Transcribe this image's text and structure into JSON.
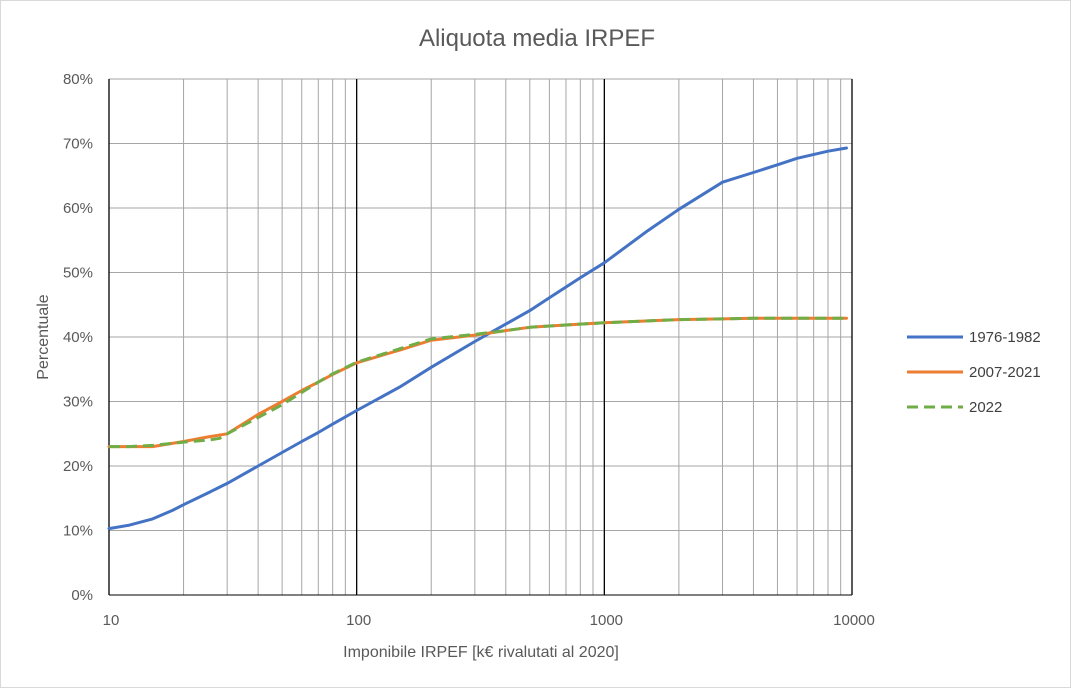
{
  "chart_data": {
    "type": "line",
    "title": "Aliquota media IRPEF",
    "xlabel": "Imponibile IRPEF [k€ rivalutati al 2020]",
    "ylabel": "Percentuale",
    "xscale": "log",
    "xlim": [
      10,
      10000
    ],
    "ylim": [
      0,
      0.8
    ],
    "x_ticks": [
      "10",
      "100",
      "1000",
      "10000"
    ],
    "y_ticks": [
      "0%",
      "10%",
      "20%",
      "30%",
      "40%",
      "50%",
      "60%",
      "70%",
      "80%"
    ],
    "grid": true,
    "legend_position": "right",
    "series": [
      {
        "name": "1976-1982",
        "color": "#4472c4",
        "style": "solid",
        "x": [
          10,
          12,
          15,
          18,
          20,
          25,
          30,
          40,
          50,
          60,
          70,
          80,
          100,
          150,
          200,
          300,
          400,
          500,
          600,
          800,
          1000,
          1500,
          2000,
          3000,
          4000,
          5000,
          6000,
          8000,
          9500
        ],
        "y": [
          0.103,
          0.108,
          0.118,
          0.131,
          0.14,
          0.158,
          0.173,
          0.2,
          0.221,
          0.238,
          0.252,
          0.265,
          0.286,
          0.323,
          0.353,
          0.393,
          0.42,
          0.441,
          0.461,
          0.492,
          0.515,
          0.565,
          0.598,
          0.64,
          0.655,
          0.667,
          0.677,
          0.688,
          0.693
        ]
      },
      {
        "name": "2007-2021",
        "color": "#ed7d31",
        "style": "solid",
        "x": [
          10,
          12,
          15,
          18,
          20,
          25,
          30,
          40,
          50,
          60,
          70,
          80,
          100,
          150,
          200,
          300,
          400,
          500,
          600,
          800,
          1000,
          1500,
          2000,
          3000,
          4000,
          5000,
          6000,
          8000,
          9500
        ],
        "y": [
          0.23,
          0.23,
          0.23,
          0.235,
          0.238,
          0.245,
          0.25,
          0.28,
          0.3,
          0.317,
          0.33,
          0.342,
          0.36,
          0.38,
          0.395,
          0.403,
          0.41,
          0.415,
          0.417,
          0.42,
          0.422,
          0.425,
          0.427,
          0.428,
          0.429,
          0.429,
          0.429,
          0.429,
          0.429
        ]
      },
      {
        "name": "2022",
        "color": "#70ad47",
        "style": "dashed",
        "x": [
          10,
          12,
          15,
          18,
          20,
          25,
          28,
          30,
          40,
          50,
          60,
          70,
          80,
          100,
          150,
          200,
          300,
          400,
          500,
          600,
          800,
          1000,
          1500,
          2000,
          3000,
          4000,
          5000,
          6000,
          8000,
          9500
        ],
        "y": [
          0.23,
          0.23,
          0.232,
          0.235,
          0.237,
          0.24,
          0.243,
          0.25,
          0.275,
          0.295,
          0.314,
          0.33,
          0.343,
          0.361,
          0.382,
          0.397,
          0.404,
          0.41,
          0.415,
          0.417,
          0.42,
          0.422,
          0.425,
          0.427,
          0.428,
          0.429,
          0.429,
          0.429,
          0.429,
          0.429
        ]
      }
    ]
  }
}
